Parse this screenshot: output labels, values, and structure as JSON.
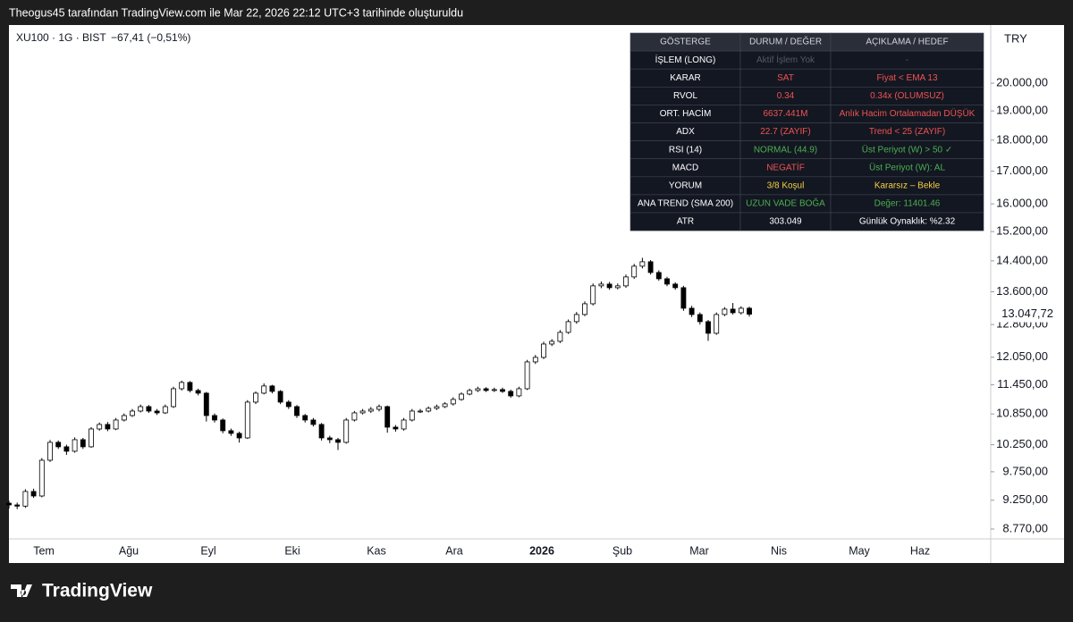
{
  "header": {
    "caption": "Theogus45 tarafından TradingView.com ile Mar 22, 2026 22:12 UTC+3 tarihinde oluşturuldu",
    "footer": "TradingView"
  },
  "chart_data": {
    "type": "candlestick",
    "symbol": "XU100 · 1G · BIST",
    "change": "−67,41 (−0,51%)",
    "currency": "TRY",
    "log_scale": true,
    "last_price": {
      "value": 13047.72,
      "label": "13.047,72"
    },
    "x_labels": [
      "Tem",
      "Ağu",
      "Eyl",
      "Eki",
      "Kas",
      "Ara",
      "2026",
      "Şub",
      "Mar",
      "Nis",
      "May",
      "Haz"
    ],
    "ylim": [
      8612,
      22270
    ],
    "yticks": [
      {
        "value": 8770,
        "label": "8.770,00"
      },
      {
        "value": 9250,
        "label": "9.250,00"
      },
      {
        "value": 9750,
        "label": "9.750,00"
      },
      {
        "value": 10250,
        "label": "10.250,00"
      },
      {
        "value": 10850,
        "label": "10.850,00"
      },
      {
        "value": 11450,
        "label": "11.450,00"
      },
      {
        "value": 12050,
        "label": "12.050,00"
      },
      {
        "value": 12800,
        "label": "12.800,00"
      },
      {
        "value": 13600,
        "label": "13.600,00"
      },
      {
        "value": 14400,
        "label": "14.400,00"
      },
      {
        "value": 15200,
        "label": "15.200,00"
      },
      {
        "value": 16000,
        "label": "16.000,00"
      },
      {
        "value": 17000,
        "label": "17.000,00"
      },
      {
        "value": 18000,
        "label": "18.000,00"
      },
      {
        "value": 19000,
        "label": "19.000,00"
      },
      {
        "value": 20000,
        "label": "20.000,00"
      }
    ],
    "up_color": "#ffffff",
    "down_color": "#000000",
    "outline_color": "#000000",
    "open": [
      9200,
      9170,
      9150,
      9401,
      9323,
      9960,
      10295,
      10211,
      10127,
      10346,
      10211,
      10553,
      10641,
      10553,
      10729,
      10818,
      10908,
      10998,
      10908,
      10872,
      10998,
      11368,
      11501,
      11331,
      11275,
      10818,
      10729,
      10519,
      10467,
      10380,
      11090,
      11275,
      11426,
      11312,
      11090,
      10998,
      10818,
      10729,
      10641,
      10380,
      10346,
      10295,
      10729,
      10872,
      10908,
      10944,
      10998,
      10588,
      10553,
      10729,
      10908,
      10908,
      10963,
      10998,
      11054,
      11145,
      11256,
      11331,
      11368,
      11331,
      11350,
      11312,
      11219,
      11368,
      11946,
      12046,
      12347,
      12409,
      12616,
      12869,
      13040,
      13301,
      13749,
      13794,
      13703,
      13749,
      13978,
      14258,
      14376,
      14093,
      13931,
      13794,
      13703,
      13192,
      13040,
      12869,
      12595,
      13040,
      13170,
      13083,
      13192
    ],
    "high": [
      9240,
      9210,
      9440,
      9450,
      10000,
      10340,
      10330,
      10250,
      10390,
      10380,
      10590,
      10680,
      10690,
      10770,
      10860,
      10950,
      11040,
      11030,
      10950,
      11040,
      11410,
      11540,
      11530,
      11370,
      11300,
      10860,
      10760,
      10560,
      10500,
      11130,
      11310,
      11480,
      11450,
      11340,
      11130,
      11030,
      10850,
      10770,
      10670,
      10420,
      10380,
      10770,
      10910,
      10950,
      10990,
      11040,
      11020,
      10630,
      10770,
      10950,
      10950,
      11000,
      11040,
      11090,
      11190,
      11290,
      11370,
      11410,
      11400,
      11390,
      11390,
      11350,
      11410,
      11990,
      12100,
      12400,
      12460,
      12670,
      12920,
      13100,
      13360,
      13810,
      13860,
      13850,
      13810,
      14040,
      14320,
      14480,
      14420,
      14150,
      13980,
      13840,
      13750,
      13250,
      13090,
      12910,
      13090,
      13220,
      13320,
      13240,
      13230
    ],
    "low": [
      9110,
      9100,
      9120,
      9290,
      9300,
      9930,
      10170,
      10060,
      10100,
      10170,
      10190,
      10520,
      10510,
      10530,
      10700,
      10790,
      10880,
      10870,
      10830,
      10850,
      10970,
      11330,
      11290,
      11230,
      10700,
      10680,
      10470,
      10420,
      10290,
      10360,
      11050,
      11250,
      11270,
      11050,
      10950,
      10770,
      10680,
      10600,
      10330,
      10280,
      10150,
      10270,
      10700,
      10840,
      10870,
      10900,
      10480,
      10500,
      10520,
      10700,
      10870,
      10880,
      10930,
      10970,
      11020,
      11120,
      11230,
      11300,
      11300,
      11300,
      11280,
      11180,
      11190,
      11340,
      11900,
      12010,
      12300,
      12370,
      12580,
      12820,
      13000,
      13260,
      13690,
      13650,
      13660,
      13700,
      13930,
      14200,
      14040,
      13880,
      13740,
      13650,
      13130,
      12980,
      12800,
      12420,
      12560,
      13000,
      13040,
      13040,
      12990
    ],
    "close": [
      9170,
      9150,
      9401,
      9323,
      9960,
      10295,
      10211,
      10127,
      10346,
      10211,
      10553,
      10641,
      10553,
      10729,
      10818,
      10908,
      10998,
      10908,
      10872,
      10998,
      11368,
      11501,
      11331,
      11275,
      10818,
      10729,
      10519,
      10467,
      10380,
      11090,
      11275,
      11426,
      11312,
      11090,
      10998,
      10818,
      10729,
      10641,
      10380,
      10346,
      10295,
      10729,
      10872,
      10908,
      10944,
      10998,
      10588,
      10553,
      10729,
      10908,
      10908,
      10963,
      10998,
      11054,
      11145,
      11256,
      11331,
      11368,
      11331,
      11350,
      11312,
      11219,
      11368,
      11946,
      12046,
      12347,
      12409,
      12616,
      12869,
      13040,
      13301,
      13749,
      13794,
      13703,
      13749,
      13978,
      14258,
      14376,
      14093,
      13931,
      13794,
      13703,
      13192,
      13040,
      12869,
      12595,
      13040,
      13170,
      13083,
      13192,
      13047.72
    ]
  },
  "table": {
    "header": [
      "GÖSTERGE",
      "DURUM / DEĞER",
      "AÇIKLAMA / HEDEF"
    ],
    "rows": [
      [
        "İŞLEM (LONG)",
        "Aktif İşlem Yok",
        "-"
      ],
      [
        "KARAR",
        "SAT",
        "Fiyat < EMA 13"
      ],
      [
        "RVOL",
        "0.34",
        "0.34x (OLUMSUZ)"
      ],
      [
        "ORT. HACİM",
        "6637.441M",
        "Anlık Hacim Ortalamadan DÜŞÜK"
      ],
      [
        "ADX",
        "22.7 (ZAYIF)",
        "Trend < 25 (ZAYIF)"
      ],
      [
        "RSI (14)",
        "NORMAL (44.9)",
        "Üst Periyot (W) > 50 ✓"
      ],
      [
        "MACD",
        "NEGATİF",
        "Üst Periyot (W): AL"
      ],
      [
        "YORUM",
        "3/8 Koşul",
        "Kararsız – Bekle"
      ],
      [
        "ANA TREND (SMA 200)",
        "UZUN VADE BOĞA",
        "Değer: 11401.46"
      ],
      [
        "ATR",
        "303.049",
        "Günlük Oynaklık: %2.32"
      ]
    ],
    "colors": [
      [
        "#ffffff",
        "#555a66",
        "#555a66"
      ],
      [
        "#ffffff",
        "#ef5350",
        "#ef5350"
      ],
      [
        "#ffffff",
        "#ef5350",
        "#ef5350"
      ],
      [
        "#ffffff",
        "#ef5350",
        "#ef5350"
      ],
      [
        "#ffffff",
        "#ef5350",
        "#ef5350"
      ],
      [
        "#ffffff",
        "#4caf50",
        "#4caf50"
      ],
      [
        "#ffffff",
        "#ef5350",
        "#4caf50"
      ],
      [
        "#ffffff",
        "#f5d142",
        "#f5d142"
      ],
      [
        "#ffffff",
        "#4caf50",
        "#4caf50"
      ],
      [
        "#ffffff",
        "#ffffff",
        "#ffffff"
      ]
    ]
  }
}
